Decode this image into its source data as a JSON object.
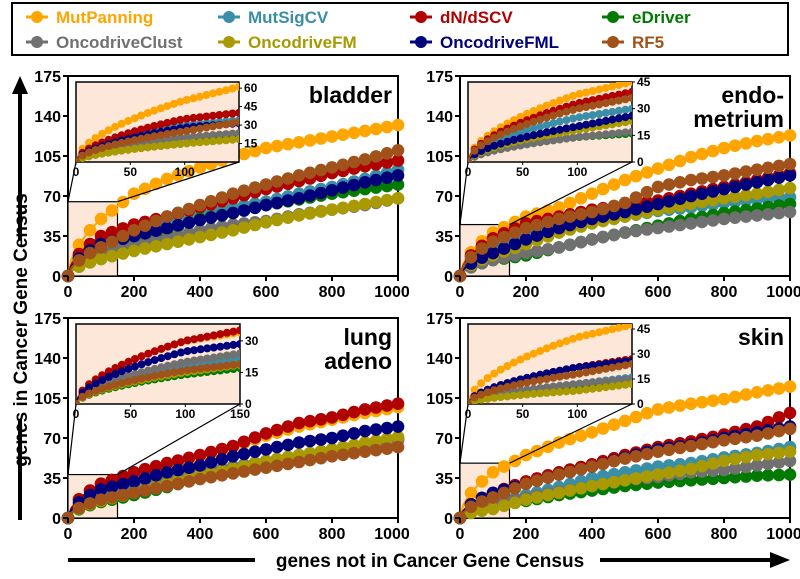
{
  "chart_data": {
    "type": "line",
    "xlabel": "genes not in Cancer Gene Census",
    "ylabel": "genes in Cancer Gene Census",
    "xlim": [
      0,
      1000
    ],
    "ylim": [
      0,
      175
    ],
    "x_ticks": [
      "0",
      "200",
      "400",
      "600",
      "800",
      "1000"
    ],
    "y_ticks": [
      "0",
      "35",
      "70",
      "105",
      "140",
      "175"
    ],
    "x": [
      0,
      100,
      200,
      300,
      400,
      500,
      600,
      700,
      800,
      900,
      1000
    ],
    "legend": [
      {
        "name": "MutPanning",
        "color": "#FFA500"
      },
      {
        "name": "MutSigCV",
        "color": "#3A8FA8"
      },
      {
        "name": "dN/dSCV",
        "color": "#B00000"
      },
      {
        "name": "eDriver",
        "color": "#007A00"
      },
      {
        "name": "OncodriveClust",
        "color": "#707070"
      },
      {
        "name": "OncodriveFM",
        "color": "#A89A00"
      },
      {
        "name": "OncodriveFML",
        "color": "#00007A"
      },
      {
        "name": "RF5",
        "color": "#A0521A"
      }
    ],
    "panels": [
      {
        "title": [
          "bladder"
        ],
        "inset": {
          "xlim": [
            0,
            150
          ],
          "ylim": [
            0,
            65
          ],
          "x_ticks": [
            "0",
            "50",
            "100"
          ],
          "y_ticks": [
            "15",
            "30",
            "45",
            "60"
          ]
        },
        "series": {
          "MutPanning": [
            0,
            50,
            72,
            85,
            95,
            104,
            112,
            117,
            122,
            127,
            132
          ],
          "MutSigCV": [
            0,
            30,
            38,
            45,
            52,
            60,
            65,
            72,
            78,
            85,
            93
          ],
          "dN/dSCV": [
            0,
            35,
            45,
            52,
            60,
            68,
            76,
            83,
            90,
            96,
            101
          ],
          "eDriver": [
            0,
            15,
            30,
            40,
            50,
            55,
            62,
            67,
            72,
            76,
            80
          ],
          "OncodriveClust": [
            0,
            20,
            27,
            33,
            40,
            45,
            48,
            54,
            58,
            62,
            68
          ],
          "OncodriveFM": [
            0,
            15,
            22,
            28,
            34,
            40,
            47,
            53,
            58,
            63,
            68
          ],
          "OncodriveFML": [
            0,
            28,
            35,
            42,
            49,
            55,
            62,
            68,
            75,
            82,
            88
          ],
          "RF5": [
            0,
            25,
            40,
            52,
            62,
            72,
            80,
            88,
            95,
            102,
            110
          ]
        }
      },
      {
        "title": [
          "endo-",
          "metrium"
        ],
        "inset": {
          "xlim": [
            0,
            150
          ],
          "ylim": [
            0,
            45
          ],
          "x_ticks": [
            "0",
            "50",
            "100"
          ],
          "y_ticks": [
            "0",
            "15",
            "30",
            "45"
          ]
        },
        "series": {
          "MutPanning": [
            0,
            38,
            52,
            60,
            72,
            84,
            94,
            104,
            112,
            118,
            123
          ],
          "MutSigCV": [
            0,
            25,
            35,
            44,
            48,
            52,
            57,
            60,
            64,
            67,
            69
          ],
          "dN/dSCV": [
            0,
            33,
            46,
            52,
            58,
            62,
            66,
            72,
            78,
            84,
            90
          ],
          "eDriver": [
            0,
            14,
            18,
            25,
            32,
            38,
            44,
            50,
            55,
            59,
            63
          ],
          "OncodriveClust": [
            0,
            14,
            20,
            25,
            32,
            38,
            42,
            46,
            50,
            53,
            56
          ],
          "OncodriveFM": [
            0,
            18,
            28,
            38,
            46,
            52,
            58,
            63,
            68,
            72,
            77
          ],
          "OncodriveFML": [
            0,
            20,
            32,
            42,
            50,
            56,
            63,
            70,
            76,
            82,
            88
          ],
          "RF5": [
            0,
            30,
            42,
            50,
            56,
            64,
            78,
            84,
            88,
            93,
            98
          ]
        }
      },
      {
        "title": [
          "lung",
          "adeno"
        ],
        "inset": {
          "xlim": [
            0,
            150
          ],
          "ylim": [
            0,
            38
          ],
          "x_ticks": [
            "0",
            "50",
            "100",
            "150"
          ],
          "y_ticks": [
            "0",
            "15",
            "30"
          ]
        },
        "series": {
          "MutPanning": [
            0,
            30,
            38,
            46,
            54,
            62,
            72,
            80,
            86,
            92,
            97
          ],
          "MutSigCV": [
            0,
            18,
            25,
            32,
            38,
            44,
            50,
            54,
            60,
            65,
            69
          ],
          "dN/dSCV": [
            0,
            30,
            40,
            48,
            55,
            63,
            74,
            83,
            88,
            95,
            100
          ],
          "eDriver": [
            0,
            14,
            20,
            27,
            35,
            41,
            48,
            53,
            58,
            64,
            70
          ],
          "OncodriveClust": [
            0,
            20,
            28,
            35,
            40,
            45,
            50,
            55,
            60,
            64,
            68
          ],
          "OncodriveFM": [
            0,
            15,
            22,
            30,
            37,
            43,
            50,
            55,
            60,
            66,
            71
          ],
          "OncodriveFML": [
            0,
            25,
            32,
            40,
            46,
            54,
            60,
            66,
            70,
            76,
            80
          ],
          "RF5": [
            0,
            16,
            22,
            28,
            34,
            39,
            44,
            49,
            54,
            58,
            62
          ]
        }
      },
      {
        "title": [
          "skin"
        ],
        "inset": {
          "xlim": [
            0,
            150
          ],
          "ylim": [
            0,
            48
          ],
          "x_ticks": [
            "0",
            "50",
            "100"
          ],
          "y_ticks": [
            "0",
            "15",
            "30",
            "45"
          ]
        },
        "series": {
          "MutPanning": [
            0,
            40,
            55,
            66,
            75,
            85,
            95,
            100,
            104,
            110,
            115
          ],
          "MutSigCV": [
            0,
            12,
            20,
            27,
            35,
            40,
            45,
            48,
            53,
            57,
            62
          ],
          "dN/dSCV": [
            0,
            22,
            32,
            40,
            47,
            55,
            62,
            67,
            73,
            80,
            92
          ],
          "eDriver": [
            0,
            10,
            15,
            20,
            24,
            28,
            31,
            33,
            35,
            37,
            38
          ],
          "OncodriveClust": [
            0,
            12,
            18,
            23,
            28,
            33,
            36,
            40,
            42,
            46,
            50
          ],
          "OncodriveFM": [
            0,
            8,
            16,
            22,
            28,
            33,
            38,
            43,
            50,
            55,
            58
          ],
          "OncodriveFML": [
            0,
            22,
            30,
            38,
            45,
            53,
            60,
            64,
            70,
            75,
            80
          ],
          "RF5": [
            0,
            18,
            30,
            38,
            45,
            52,
            58,
            63,
            68,
            72,
            78
          ]
        }
      }
    ]
  }
}
